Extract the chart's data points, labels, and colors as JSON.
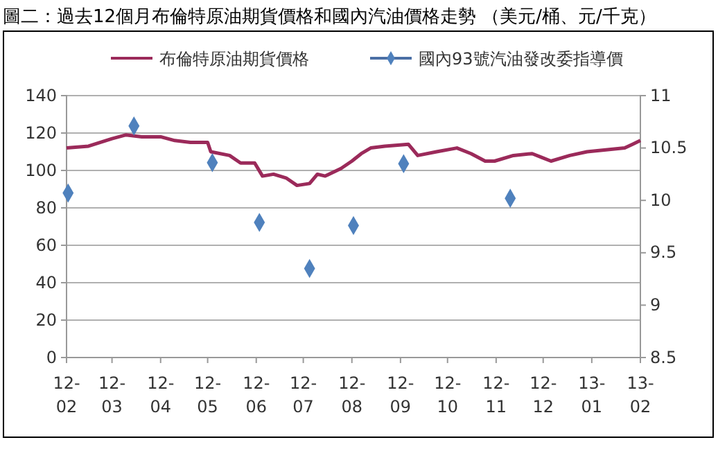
{
  "chart_data": {
    "type": "line",
    "title": "圖二：過去12個月布倫特原油期貨價格和國內汽油價格走勢 （美元/桶、元/千克）",
    "xlim": [
      "2012-02-01",
      "2013-02-01"
    ],
    "xticks": [
      {
        "value": "2012-02-01",
        "label": "12-02"
      },
      {
        "value": "2012-03-01",
        "label": "12-03"
      },
      {
        "value": "2012-04-01",
        "label": "12-04"
      },
      {
        "value": "2012-05-01",
        "label": "12-05"
      },
      {
        "value": "2012-06-01",
        "label": "12-06"
      },
      {
        "value": "2012-07-01",
        "label": "12-07"
      },
      {
        "value": "2012-08-01",
        "label": "12-08"
      },
      {
        "value": "2012-09-01",
        "label": "12-09"
      },
      {
        "value": "2012-10-01",
        "label": "12-10"
      },
      {
        "value": "2012-11-01",
        "label": "12-11"
      },
      {
        "value": "2012-12-01",
        "label": "12-12"
      },
      {
        "value": "2013-01-01",
        "label": "13-01"
      },
      {
        "value": "2013-02-01",
        "label": "13-02"
      }
    ],
    "ylim": [
      0,
      140
    ],
    "yticks": [
      0,
      20,
      40,
      60,
      80,
      100,
      120,
      140
    ],
    "y2lim": [
      8.5,
      11
    ],
    "y2ticks": [
      8.5,
      9,
      9.5,
      10,
      10.5,
      11
    ],
    "grid": "y",
    "legend": "top",
    "series": [
      {
        "name": "布倫特原油期貨價格",
        "color": "#9b2a5a",
        "marker": "none",
        "x": [
          "2012-02-01",
          "2012-02-15",
          "2012-03-01",
          "2012-03-10",
          "2012-03-20",
          "2012-04-01",
          "2012-04-10",
          "2012-04-20",
          "2012-05-01",
          "2012-05-03",
          "2012-05-15",
          "2012-05-22",
          "2012-05-31",
          "2012-06-05",
          "2012-06-12",
          "2012-06-20",
          "2012-06-27",
          "2012-07-05",
          "2012-07-10",
          "2012-07-15",
          "2012-07-25",
          "2012-08-01",
          "2012-08-07",
          "2012-08-13",
          "2012-08-22",
          "2012-09-06",
          "2012-09-12",
          "2012-09-24",
          "2012-10-07",
          "2012-10-16",
          "2012-10-25",
          "2012-10-31",
          "2012-11-12",
          "2012-11-24",
          "2012-11-30",
          "2012-12-06",
          "2012-12-18",
          "2012-12-29",
          "2013-01-10",
          "2013-01-22",
          "2013-01-27",
          "2013-02-01"
        ],
        "values": [
          112,
          113,
          117,
          119,
          118,
          118,
          116,
          115,
          115,
          110,
          108,
          104,
          104,
          97,
          98,
          96,
          92,
          93,
          98,
          97,
          101,
          105,
          109,
          112,
          113,
          114,
          108,
          110,
          112,
          109,
          105,
          105,
          108,
          109,
          107,
          105,
          108,
          110,
          111,
          112,
          114,
          116
        ]
      },
      {
        "name": "國內93號汽油發改委指導價",
        "type": "scatter",
        "axis": "y2",
        "color": "#4f81bd",
        "marker": "diamond",
        "x": [
          "2012-02-02",
          "2012-03-15",
          "2012-05-04",
          "2012-06-03",
          "2012-07-05",
          "2012-08-02",
          "2012-09-03",
          "2012-11-10"
        ],
        "values": [
          10.07,
          10.71,
          10.36,
          9.79,
          9.35,
          9.76,
          10.35,
          10.02
        ]
      }
    ]
  }
}
